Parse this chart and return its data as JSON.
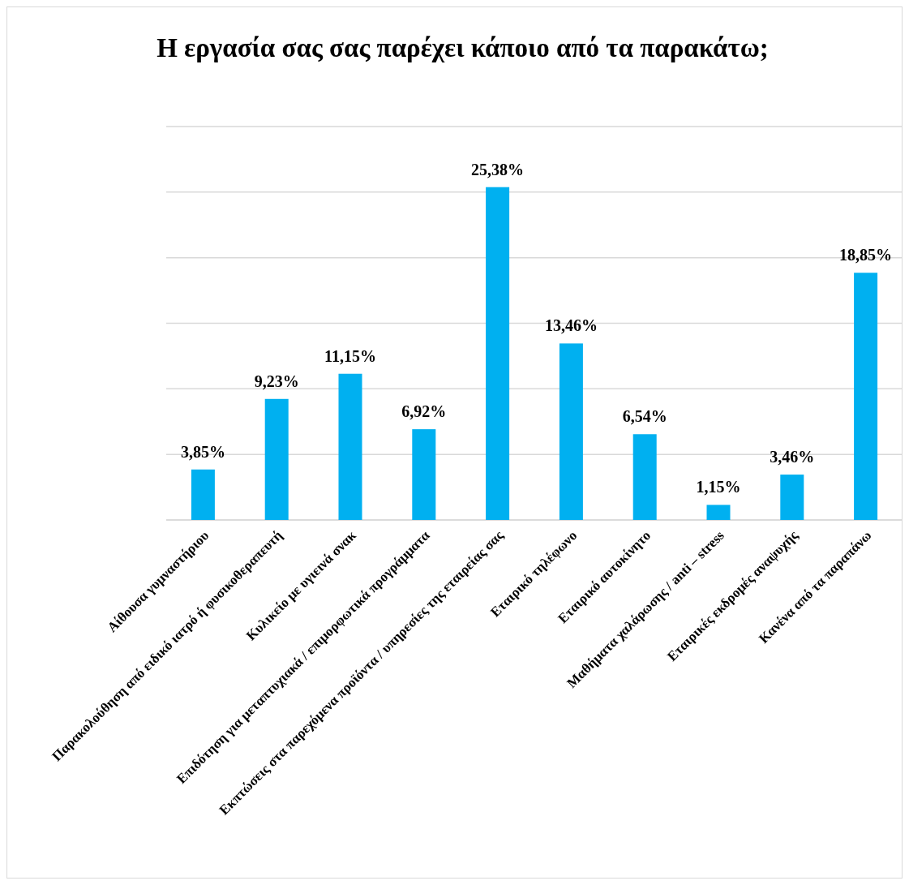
{
  "chart_data": {
    "type": "bar",
    "title": "Η εργασία σας σας παρέχει κάποιο από τα παρακάτω;",
    "categories": [
      "Αίθουσα γυμναστήριου",
      "Παρακολούθηση από ειδικό ιατρό ή φυσικοθεραπευτή",
      "Κυλικείο με υγιεινά σνακ",
      "Επιδότηση για μεταπτυχιακά / επιμορφωτικά προγράμματα",
      "Εκπτώσεις στα παρεχόμενα προϊόντα / υπηρεσίες της εταιρείας σας",
      "Εταιρικό τηλέφωνο",
      "Εταιρικό αυτοκίνητο",
      "Μαθήματα χαλάρωσης / anti – stress",
      "Εταιρικές εκδρομές αναψυχής",
      "Κανένα από τα παραπάνω"
    ],
    "values": [
      3.85,
      9.23,
      11.15,
      6.92,
      25.38,
      13.46,
      6.54,
      1.15,
      3.46,
      18.85
    ],
    "value_labels": [
      "3,85%",
      "9,23%",
      "11,15%",
      "6,92%",
      "25,38%",
      "13,46%",
      "6,54%",
      "1,15%",
      "3,46%",
      "18,85%"
    ],
    "color": "#00b0f0",
    "ylim": [
      0,
      30
    ],
    "yticks": [
      {
        "value": 0,
        "label": null
      },
      {
        "value": 5,
        "label": null
      },
      {
        "value": 10,
        "label": null
      },
      {
        "value": 15,
        "label": null
      },
      {
        "value": 20,
        "label": null
      },
      {
        "value": 25,
        "label": null
      },
      {
        "value": 30,
        "label": null
      }
    ],
    "grid": "y",
    "tick_labels": "x"
  }
}
